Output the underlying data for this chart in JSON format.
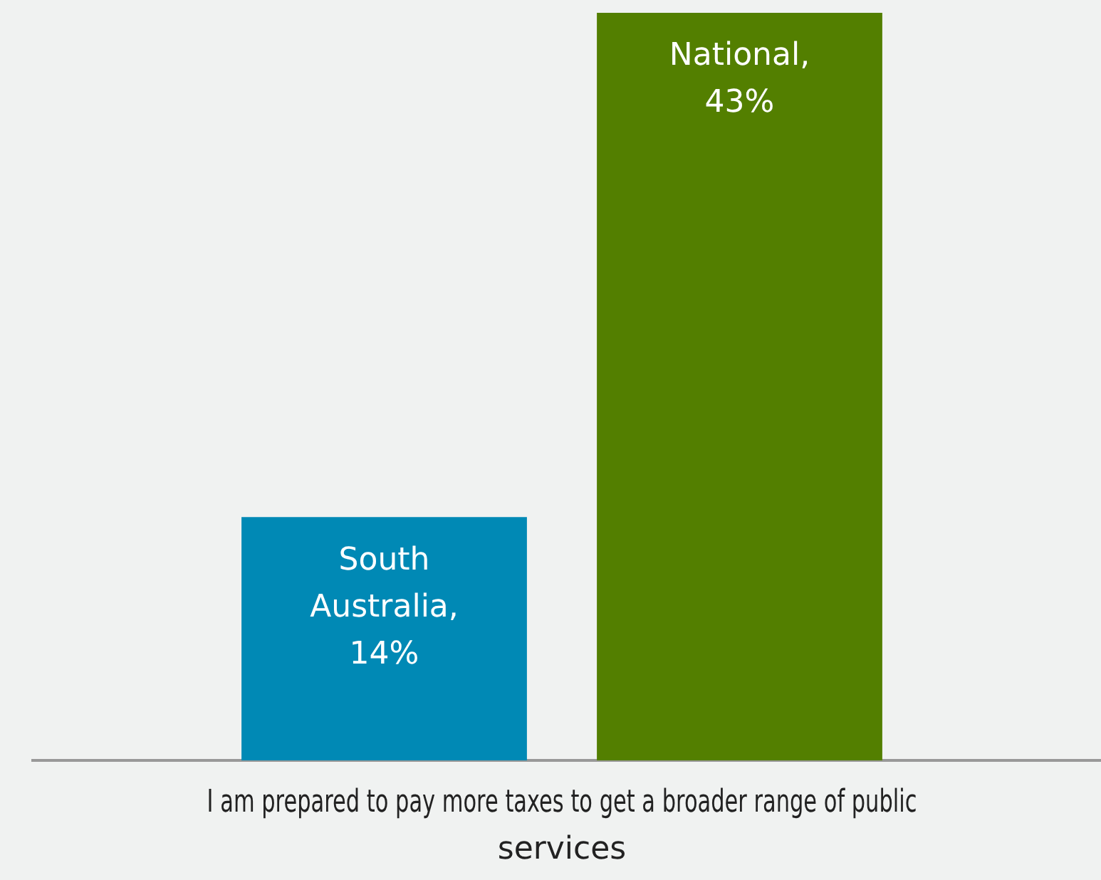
{
  "chart_data": {
    "type": "bar",
    "categories": [
      null,
      null
    ],
    "xlabel": "I am prepared to pay more taxes to get a broader range of public services",
    "values": [
      14,
      43
    ],
    "colors": [
      "#0089b5",
      "#537f00"
    ],
    "value_labels": [
      "South Australia, 14%",
      "National, 43%"
    ],
    "ylim": [
      0,
      43
    ],
    "grid": false,
    "legend": false
  }
}
